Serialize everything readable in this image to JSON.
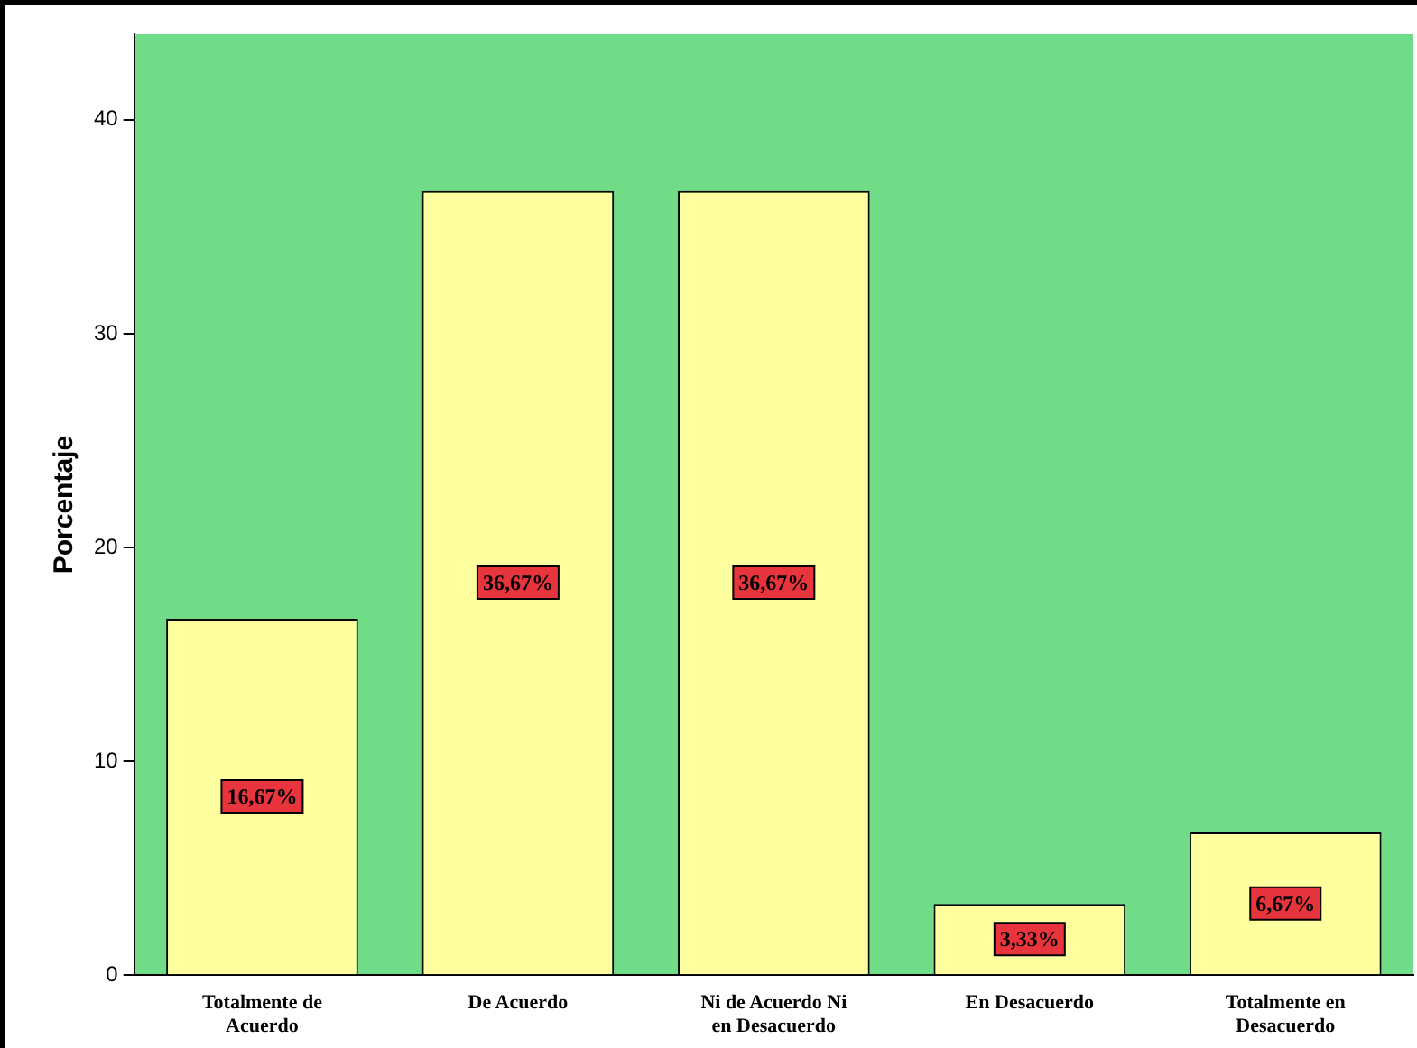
{
  "chart_data": {
    "type": "bar",
    "ylabel": "Porcentaje",
    "categories": [
      "Totalmente de Acuerdo",
      "De Acuerdo",
      "Ni de Acuerdo Ni en Desacuerdo",
      "En Desacuerdo",
      "Totalmente en Desacuerdo"
    ],
    "values": [
      16.67,
      36.67,
      36.67,
      3.33,
      6.67
    ],
    "value_labels": [
      "16,67%",
      "36,67%",
      "36,67%",
      "3,33%",
      "6,67%"
    ],
    "color": "#ffffa0",
    "ylim": [
      0,
      44
    ],
    "yticks": [
      0,
      10,
      20,
      30,
      40
    ],
    "grid": false,
    "legend": false
  }
}
